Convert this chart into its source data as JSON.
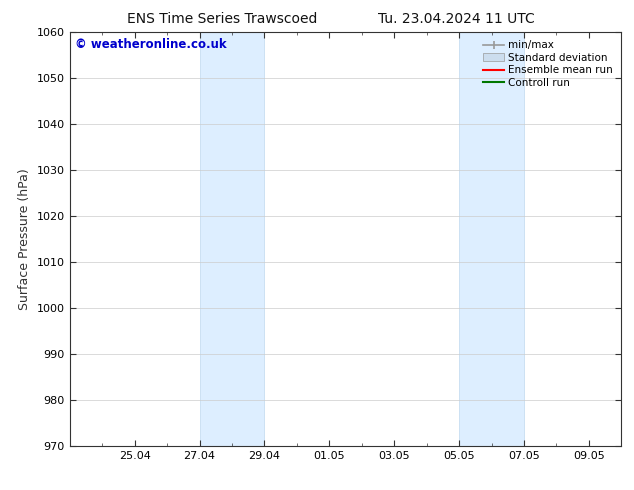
{
  "title_left": "ENS Time Series Trawscoed",
  "title_right": "Tu. 23.04.2024 11 UTC",
  "ylabel": "Surface Pressure (hPa)",
  "ylim": [
    970,
    1060
  ],
  "yticks": [
    970,
    980,
    990,
    1000,
    1010,
    1020,
    1030,
    1040,
    1050,
    1060
  ],
  "x_tick_labels": [
    "25.04",
    "27.04",
    "29.04",
    "01.05",
    "03.05",
    "05.05",
    "07.05",
    "09.05"
  ],
  "x_tick_positions": [
    2,
    4,
    6,
    8,
    10,
    12,
    14,
    16
  ],
  "x_minor_tick_positions": [
    0,
    1,
    2,
    3,
    4,
    5,
    6,
    7,
    8,
    9,
    10,
    11,
    12,
    13,
    14,
    15,
    16,
    17
  ],
  "x_lim": [
    0,
    17
  ],
  "shaded_bands": [
    {
      "x_start": 4,
      "x_end": 6
    },
    {
      "x_start": 12,
      "x_end": 14
    }
  ],
  "band_color": "#ddeeff",
  "band_edge_color": "#c0d8ef",
  "copyright_text": "© weatheronline.co.uk",
  "copyright_color": "#0000cc",
  "background_color": "#ffffff",
  "legend_entries": [
    {
      "label": "min/max",
      "color": "#999999",
      "style": "line_with_caps"
    },
    {
      "label": "Standard deviation",
      "color": "#ccddee",
      "style": "filled_box"
    },
    {
      "label": "Ensemble mean run",
      "color": "#ff0000",
      "style": "line"
    },
    {
      "label": "Controll run",
      "color": "#007700",
      "style": "line"
    }
  ],
  "title_fontsize": 10,
  "tick_fontsize": 8,
  "legend_fontsize": 7.5,
  "ylabel_fontsize": 9
}
